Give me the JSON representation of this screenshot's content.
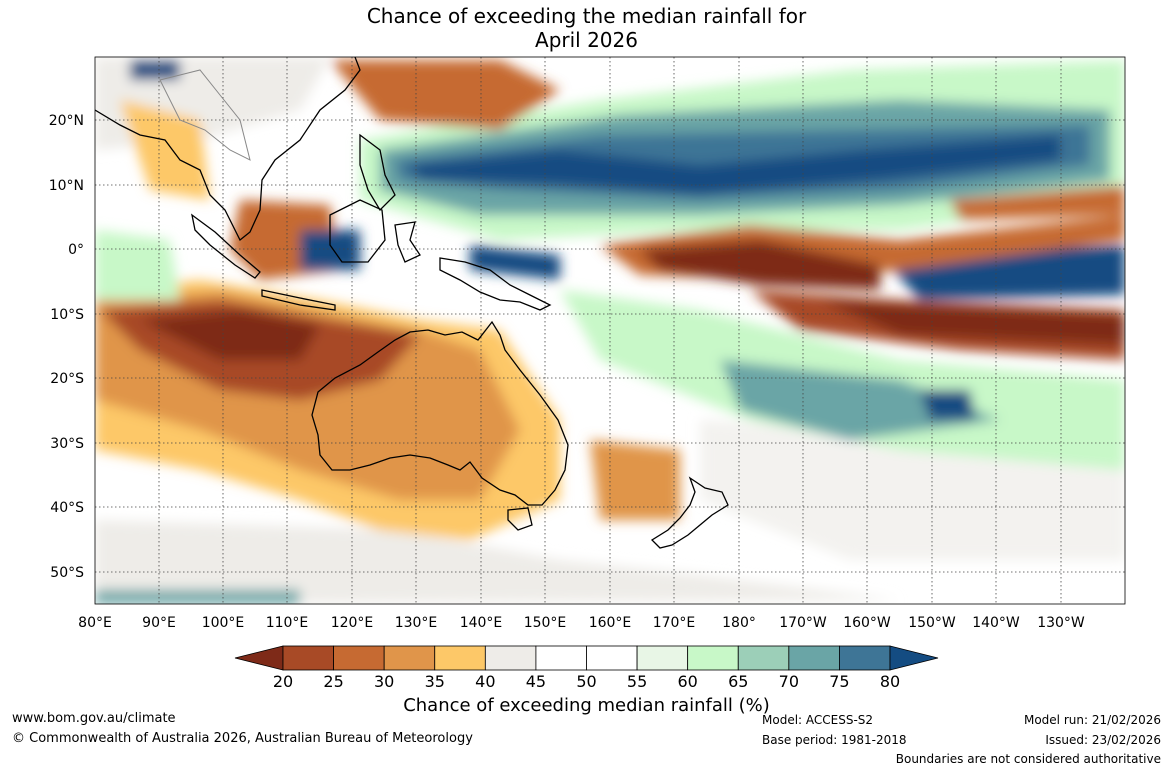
{
  "title": {
    "line1": "Chance of exceeding the median rainfall for",
    "line2": "April 2026"
  },
  "map": {
    "lon_labels": [
      "80°E",
      "90°E",
      "100°E",
      "110°E",
      "120°E",
      "130°E",
      "140°E",
      "150°E",
      "160°E",
      "170°E",
      "180°",
      "170°W",
      "160°W",
      "150°W",
      "140°W",
      "130°W"
    ],
    "lat_labels": [
      "20°N",
      "10°N",
      "0°",
      "10°S",
      "20°S",
      "30°S",
      "40°S",
      "50°S"
    ]
  },
  "colorbar": {
    "ticks": [
      "20",
      "25",
      "30",
      "35",
      "40",
      "45",
      "50",
      "55",
      "60",
      "65",
      "70",
      "75",
      "80"
    ],
    "colors": [
      "#7e2a18",
      "#a84a26",
      "#c66a32",
      "#e0954a",
      "#fdc868",
      "#eeece8",
      "#ffffff",
      "#ffffff",
      "#e8f6e6",
      "#c8f8c8",
      "#9ccfb8",
      "#6aa5a6",
      "#3e7596",
      "#144c82"
    ],
    "label": "Chance of exceeding median rainfall (%)"
  },
  "footer": {
    "url": "www.bom.gov.au/climate",
    "copyright": "© Commonwealth of Australia 2026, Australian Bureau of Meteorology",
    "model": "Model: ACCESS-S2",
    "base_period": "Base period: 1981-2018",
    "model_run": "Model run: 21/02/2026",
    "issued": "Issued: 23/02/2026",
    "disclaimer": "Boundaries are not considered authoritative"
  }
}
